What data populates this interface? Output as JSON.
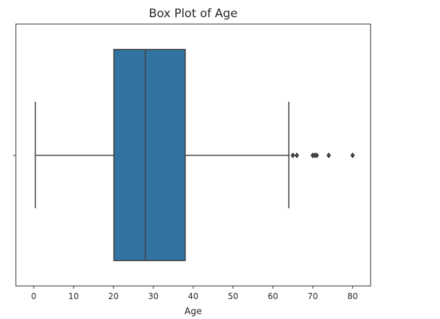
{
  "chart_data": {
    "type": "box",
    "title": "Box Plot of Age",
    "xlabel": "Age",
    "ylabel": "",
    "xlim": [
      -4.5,
      84.5
    ],
    "xticks": [
      0,
      10,
      20,
      30,
      40,
      50,
      60,
      70,
      80
    ],
    "xtick_labels": [
      "0",
      "10",
      "20",
      "30",
      "40",
      "50",
      "60",
      "70",
      "80"
    ],
    "grid": false,
    "legend": "none",
    "orientation": "horizontal",
    "box": {
      "whisker_low": 0.4,
      "q1": 20.1,
      "median": 28.0,
      "q3": 38.0,
      "whisker_high": 64.0
    },
    "outliers": [
      65,
      66,
      70,
      70.5,
      71,
      74,
      80
    ],
    "colors": {
      "box_fill": "#3274a1",
      "lines": "#3f3f3f",
      "axes": "#262626"
    }
  }
}
